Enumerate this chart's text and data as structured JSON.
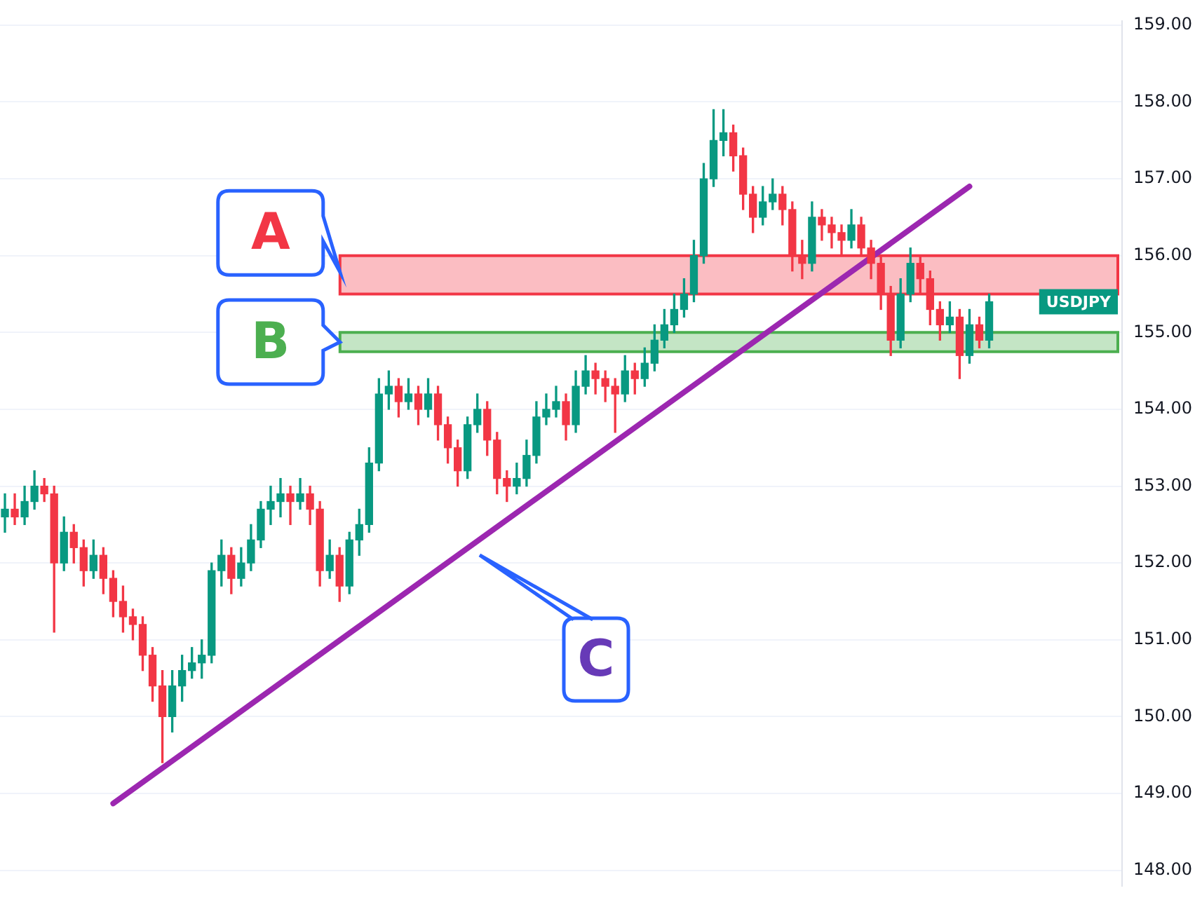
{
  "chart_data": {
    "type": "candlestick",
    "categories": [
      null,
      null,
      null,
      null,
      null,
      null,
      null,
      null,
      null,
      null,
      null,
      null,
      null,
      null,
      null,
      null,
      null,
      null,
      null,
      null,
      null,
      null,
      null,
      null,
      null,
      null,
      null,
      null,
      null,
      null,
      null,
      null,
      null,
      null,
      null,
      null,
      null,
      null,
      null,
      null,
      null,
      null,
      null,
      null,
      null,
      null,
      null,
      null,
      null,
      null,
      null,
      null,
      null,
      null,
      null,
      null,
      null,
      null,
      null,
      null,
      null,
      null,
      null,
      null,
      null,
      null,
      null,
      null,
      null,
      null,
      null,
      null,
      null,
      null,
      null,
      null,
      null,
      null,
      null,
      null,
      null,
      null,
      null,
      null,
      null,
      null,
      null,
      null,
      null,
      null,
      null,
      null,
      null,
      null,
      null,
      null,
      null,
      null,
      null,
      null,
      null,
      null,
      null,
      null,
      null,
      null,
      null,
      null,
      null,
      null,
      null,
      null,
      null,
      null
    ],
    "ohlc": [
      [
        152.6,
        152.9,
        152.4,
        152.7
      ],
      [
        152.7,
        152.9,
        152.5,
        152.6
      ],
      [
        152.6,
        153.0,
        152.5,
        152.8
      ],
      [
        152.8,
        153.2,
        152.7,
        153.0
      ],
      [
        153.0,
        153.1,
        152.8,
        152.9
      ],
      [
        152.9,
        153.0,
        151.1,
        152.0
      ],
      [
        152.0,
        152.6,
        151.9,
        152.4
      ],
      [
        152.4,
        152.5,
        152.0,
        152.2
      ],
      [
        152.2,
        152.3,
        151.7,
        151.9
      ],
      [
        151.9,
        152.3,
        151.8,
        152.1
      ],
      [
        152.1,
        152.2,
        151.6,
        151.8
      ],
      [
        151.8,
        151.9,
        151.3,
        151.5
      ],
      [
        151.5,
        151.7,
        151.1,
        151.3
      ],
      [
        151.3,
        151.4,
        151.0,
        151.2
      ],
      [
        151.2,
        151.3,
        150.6,
        150.8
      ],
      [
        150.8,
        150.9,
        150.2,
        150.4
      ],
      [
        150.4,
        150.6,
        149.4,
        150.0
      ],
      [
        150.0,
        150.6,
        149.8,
        150.4
      ],
      [
        150.4,
        150.8,
        150.2,
        150.6
      ],
      [
        150.6,
        150.9,
        150.5,
        150.7
      ],
      [
        150.7,
        151.0,
        150.5,
        150.8
      ],
      [
        150.8,
        152.0,
        150.7,
        151.9
      ],
      [
        151.9,
        152.3,
        151.7,
        152.1
      ],
      [
        152.1,
        152.2,
        151.6,
        151.8
      ],
      [
        151.8,
        152.2,
        151.7,
        152.0
      ],
      [
        152.0,
        152.5,
        151.9,
        152.3
      ],
      [
        152.3,
        152.8,
        152.2,
        152.7
      ],
      [
        152.7,
        153.0,
        152.5,
        152.8
      ],
      [
        152.8,
        153.1,
        152.6,
        152.9
      ],
      [
        152.9,
        153.0,
        152.5,
        152.8
      ],
      [
        152.8,
        153.1,
        152.7,
        152.9
      ],
      [
        152.9,
        153.0,
        152.5,
        152.7
      ],
      [
        152.7,
        152.8,
        151.7,
        151.9
      ],
      [
        151.9,
        152.3,
        151.8,
        152.1
      ],
      [
        152.1,
        152.2,
        151.5,
        151.7
      ],
      [
        151.7,
        152.4,
        151.6,
        152.3
      ],
      [
        152.3,
        152.7,
        152.1,
        152.5
      ],
      [
        152.5,
        153.5,
        152.4,
        153.3
      ],
      [
        153.3,
        154.4,
        153.2,
        154.2
      ],
      [
        154.2,
        154.5,
        154.0,
        154.3
      ],
      [
        154.3,
        154.4,
        153.9,
        154.1
      ],
      [
        154.1,
        154.4,
        154.0,
        154.2
      ],
      [
        154.2,
        154.3,
        153.8,
        154.0
      ],
      [
        154.0,
        154.4,
        153.9,
        154.2
      ],
      [
        154.2,
        154.3,
        153.6,
        153.8
      ],
      [
        153.8,
        153.9,
        153.3,
        153.5
      ],
      [
        153.5,
        153.6,
        153.0,
        153.2
      ],
      [
        153.2,
        153.9,
        153.1,
        153.8
      ],
      [
        153.8,
        154.2,
        153.7,
        154.0
      ],
      [
        154.0,
        154.1,
        153.4,
        153.6
      ],
      [
        153.6,
        153.7,
        152.9,
        153.1
      ],
      [
        153.1,
        153.2,
        152.8,
        153.0
      ],
      [
        153.0,
        153.3,
        152.9,
        153.1
      ],
      [
        153.1,
        153.6,
        153.0,
        153.4
      ],
      [
        153.4,
        154.1,
        153.3,
        153.9
      ],
      [
        153.9,
        154.2,
        153.8,
        154.0
      ],
      [
        154.0,
        154.3,
        153.9,
        154.1
      ],
      [
        154.1,
        154.2,
        153.6,
        153.8
      ],
      [
        153.8,
        154.5,
        153.7,
        154.3
      ],
      [
        154.3,
        154.7,
        154.2,
        154.5
      ],
      [
        154.5,
        154.6,
        154.2,
        154.4
      ],
      [
        154.4,
        154.5,
        154.1,
        154.3
      ],
      [
        154.3,
        154.4,
        153.7,
        154.2
      ],
      [
        154.2,
        154.7,
        154.1,
        154.5
      ],
      [
        154.5,
        154.6,
        154.2,
        154.4
      ],
      [
        154.4,
        154.8,
        154.3,
        154.6
      ],
      [
        154.6,
        155.1,
        154.5,
        154.9
      ],
      [
        154.9,
        155.3,
        154.8,
        155.1
      ],
      [
        155.1,
        155.5,
        155.0,
        155.3
      ],
      [
        155.3,
        155.7,
        155.2,
        155.5
      ],
      [
        155.5,
        156.2,
        155.4,
        156.0
      ],
      [
        156.0,
        157.2,
        155.9,
        157.0
      ],
      [
        157.0,
        157.9,
        156.9,
        157.5
      ],
      [
        157.5,
        157.9,
        157.3,
        157.6
      ],
      [
        157.6,
        157.7,
        157.1,
        157.3
      ],
      [
        157.3,
        157.4,
        156.6,
        156.8
      ],
      [
        156.8,
        156.9,
        156.3,
        156.5
      ],
      [
        156.5,
        156.9,
        156.4,
        156.7
      ],
      [
        156.7,
        157.0,
        156.6,
        156.8
      ],
      [
        156.8,
        156.9,
        156.4,
        156.6
      ],
      [
        156.6,
        156.7,
        155.8,
        156.0
      ],
      [
        156.0,
        156.2,
        155.7,
        155.9
      ],
      [
        155.9,
        156.7,
        155.8,
        156.5
      ],
      [
        156.5,
        156.6,
        156.2,
        156.4
      ],
      [
        156.4,
        156.5,
        156.1,
        156.3
      ],
      [
        156.3,
        156.4,
        156.0,
        156.2
      ],
      [
        156.2,
        156.6,
        156.1,
        156.4
      ],
      [
        156.4,
        156.5,
        156.0,
        156.1
      ],
      [
        156.1,
        156.2,
        155.7,
        155.9
      ],
      [
        155.9,
        156.0,
        155.3,
        155.5
      ],
      [
        155.5,
        155.6,
        154.7,
        154.9
      ],
      [
        154.9,
        155.7,
        154.8,
        155.5
      ],
      [
        155.5,
        156.1,
        155.4,
        155.9
      ],
      [
        155.9,
        156.0,
        155.5,
        155.7
      ],
      [
        155.7,
        155.8,
        155.1,
        155.3
      ],
      [
        155.3,
        155.4,
        154.9,
        155.1
      ],
      [
        155.1,
        155.4,
        155.0,
        155.2
      ],
      [
        155.2,
        155.3,
        154.4,
        154.7
      ],
      [
        154.7,
        155.3,
        154.6,
        155.1
      ],
      [
        155.1,
        155.2,
        154.8,
        154.9
      ],
      [
        154.9,
        155.5,
        154.8,
        155.4
      ],
      null,
      null,
      null,
      null,
      null,
      null,
      null,
      null,
      null,
      null,
      null,
      null,
      null
    ],
    "series": [
      {
        "type": "line",
        "color": "#9c27b0",
        "values": [
          null,
          null,
          null,
          null,
          null,
          null,
          null,
          null,
          null,
          null,
          null,
          148.87,
          null,
          null,
          null,
          null,
          null,
          null,
          null,
          null,
          null,
          null,
          null,
          null,
          null,
          null,
          null,
          null,
          null,
          null,
          null,
          null,
          null,
          null,
          null,
          null,
          null,
          null,
          null,
          null,
          null,
          null,
          null,
          null,
          null,
          null,
          null,
          null,
          null,
          null,
          null,
          null,
          null,
          null,
          null,
          null,
          null,
          null,
          null,
          null,
          null,
          null,
          null,
          null,
          null,
          null,
          null,
          null,
          null,
          null,
          null,
          null,
          null,
          null,
          null,
          null,
          null,
          null,
          null,
          null,
          null,
          null,
          null,
          null,
          null,
          null,
          null,
          null,
          null,
          null,
          null,
          null,
          null,
          null,
          null,
          null,
          null,
          null,
          156.9,
          null,
          null,
          null,
          null,
          null,
          null,
          null,
          null,
          null,
          null,
          null,
          null,
          null,
          null,
          null
        ]
      }
    ],
    "bands": [
      {
        "axis": "y",
        "from": 155.5,
        "to": 156.0,
        "label": "A",
        "color": "#f23645"
      },
      {
        "axis": "y",
        "from": 154.75,
        "to": 155.0,
        "label": "B",
        "color": "#4caf50"
      }
    ],
    "annotations": [
      "C",
      "USDJPY"
    ],
    "ylim": [
      147.8,
      159.05
    ],
    "yticks": [
      {
        "value": 148,
        "label": "148.00"
      },
      {
        "value": 149,
        "label": "149.00"
      },
      {
        "value": 150,
        "label": "150.00"
      },
      {
        "value": 151,
        "label": "151.00"
      },
      {
        "value": 152,
        "label": "152.00"
      },
      {
        "value": 153,
        "label": "153.00"
      },
      {
        "value": 154,
        "label": "154.00"
      },
      {
        "value": 155,
        "label": "155.00"
      },
      {
        "value": 156,
        "label": "156.00"
      },
      {
        "value": 157,
        "label": "157.00"
      },
      {
        "value": 158,
        "label": "158.00"
      },
      {
        "value": 159,
        "label": "159.00"
      }
    ],
    "grid": "y",
    "legend": false,
    "tick_labels": "y"
  }
}
